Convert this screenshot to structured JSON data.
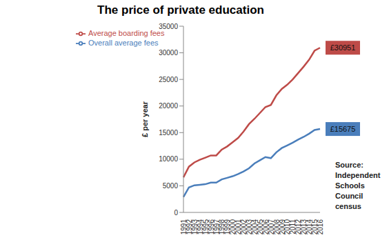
{
  "chart_data": {
    "type": "line",
    "title": "The price of private education",
    "y_label": "£ per year",
    "categories": [
      "1991",
      "1992",
      "1993",
      "1994",
      "1995",
      "1996",
      "1997",
      "1998",
      "1999",
      "2000",
      "2001",
      "2002",
      "2003",
      "2004",
      "2005",
      "2006",
      "2007",
      "2008",
      "2009",
      "2010",
      "2011",
      "2012",
      "2013",
      "2014",
      "2015",
      "2016"
    ],
    "series": [
      {
        "name": "Overall average fees",
        "color": "#4a7ebb",
        "values": [
          2900,
          4700,
          5100,
          5200,
          5300,
          5600,
          5600,
          6200,
          6500,
          6800,
          7200,
          7700,
          8300,
          9200,
          9800,
          10400,
          10200,
          11300,
          12100,
          12600,
          13100,
          13700,
          14200,
          14800,
          15500,
          15675
        ],
        "value_labels": [
          null,
          null,
          null,
          null,
          null,
          null,
          null,
          null,
          null,
          null,
          null,
          null,
          null,
          null,
          null,
          null,
          null,
          null,
          null,
          null,
          null,
          null,
          null,
          null,
          null,
          "£15675"
        ]
      },
      {
        "name": "Average boarding fees",
        "color": "#be4b48",
        "values": [
          6600,
          8600,
          9400,
          9900,
          10300,
          10700,
          10700,
          11800,
          12400,
          13200,
          14000,
          15200,
          16600,
          17600,
          18700,
          19800,
          20200,
          22000,
          23200,
          24000,
          25000,
          26200,
          27400,
          28700,
          30400,
          30951
        ],
        "value_labels": [
          null,
          null,
          null,
          null,
          null,
          null,
          null,
          null,
          null,
          null,
          null,
          null,
          null,
          null,
          null,
          null,
          null,
          null,
          null,
          null,
          null,
          null,
          null,
          null,
          null,
          "£30951"
        ]
      }
    ],
    "ylim": [
      0,
      35000
    ],
    "yticks": [
      0,
      5000,
      10000,
      15000,
      20000,
      25000,
      30000,
      35000
    ],
    "grid": false,
    "legend": "upper left",
    "annotations": [
      "Source:",
      "Independent",
      "Schools Council",
      "census"
    ]
  }
}
